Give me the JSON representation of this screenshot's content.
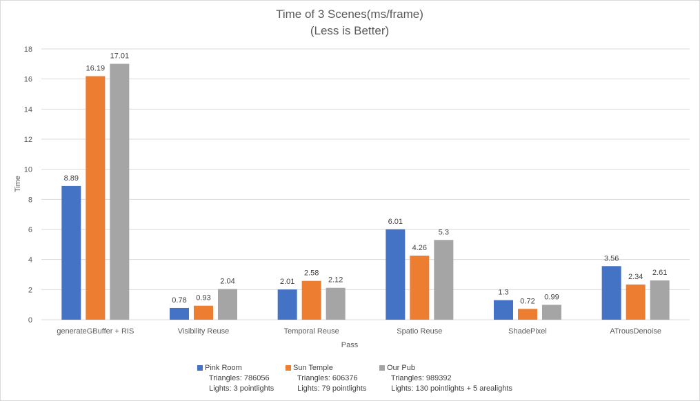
{
  "chart_data": {
    "type": "bar",
    "title": "Time of 3 Scenes(ms/frame)",
    "subtitle": "(Less is Better)",
    "xlabel": "Pass",
    "ylabel": "Time",
    "ylim": [
      0,
      18
    ],
    "yticks": [
      "0",
      "2",
      "4",
      "6",
      "8",
      "10",
      "12",
      "14",
      "16",
      "18"
    ],
    "grid": true,
    "legend_position": "bottom",
    "categories": [
      "generateGBuffer + RIS",
      "Visibility Reuse",
      "Temporal Reuse",
      "Spatio Reuse",
      "ShadePixel",
      "ATrousDenoise"
    ],
    "series": [
      {
        "name": "Pink Room",
        "details": [
          "Triangles: 786056",
          "Lights: 3 pointlights"
        ],
        "color": "#4472c4",
        "values": [
          8.89,
          0.78,
          2.01,
          6.01,
          1.3,
          3.56
        ],
        "labels": [
          "8.89",
          "0.78",
          "2.01",
          "6.01",
          "1.3",
          "3.56"
        ]
      },
      {
        "name": "Sun Temple",
        "details": [
          "Triangles: 606376",
          "Lights: 79 pointlights"
        ],
        "color": "#ed7d31",
        "values": [
          16.19,
          0.93,
          2.58,
          4.26,
          0.72,
          2.34
        ],
        "labels": [
          "16.19",
          "0.93",
          "2.58",
          "4.26",
          "0.72",
          "2.34"
        ]
      },
      {
        "name": "Our Pub",
        "details": [
          "Triangles: 989392",
          "Lights: 130 pointlights + 5 arealights"
        ],
        "color": "#a5a5a5",
        "values": [
          17.01,
          2.04,
          2.12,
          5.3,
          0.99,
          2.61
        ],
        "labels": [
          "17.01",
          "2.04",
          "2.12",
          "5.3",
          "0.99",
          "2.61"
        ]
      }
    ]
  }
}
